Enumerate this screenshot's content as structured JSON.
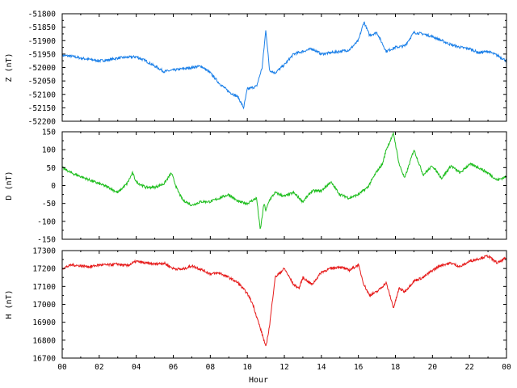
{
  "chart_data": {
    "type": "line",
    "title": "",
    "xlabel": "Hour",
    "x_tick_labels": [
      "00",
      "02",
      "04",
      "06",
      "08",
      "10",
      "12",
      "14",
      "16",
      "18",
      "20",
      "22",
      "00"
    ],
    "xlim": [
      0,
      24
    ],
    "panels": [
      {
        "ylabel": "Z (nT)",
        "color": "#1a7fe8",
        "ylim": [
          -52200,
          -51800
        ],
        "yticks": [
          -52200,
          -52150,
          -52100,
          -52050,
          -52000,
          -51950,
          -51900,
          -51850,
          -51800
        ],
        "series": [
          {
            "x": [
              0,
              0.5,
              1,
              1.5,
              2,
              2.5,
              3,
              3.5,
              4,
              4.5,
              5,
              5.5,
              6,
              6.5,
              7,
              7.5,
              8,
              8.5,
              9,
              9.5,
              9.8,
              10,
              10.5,
              10.8,
              11,
              11.2,
              11.5,
              12,
              12.5,
              13,
              13.5,
              14,
              14.5,
              15,
              15.5,
              16,
              16.3,
              16.6,
              17,
              17.5,
              18,
              18.5,
              19,
              19.5,
              20,
              20.5,
              21,
              21.5,
              22,
              22.5,
              23,
              23.5,
              24
            ],
            "values": [
              -51955,
              -51958,
              -51965,
              -51970,
              -51975,
              -51972,
              -51965,
              -51962,
              -51960,
              -51975,
              -51995,
              -52015,
              -52010,
              -52005,
              -52000,
              -51995,
              -52020,
              -52060,
              -52090,
              -52110,
              -52150,
              -52080,
              -52070,
              -52000,
              -51860,
              -52010,
              -52020,
              -51990,
              -51950,
              -51940,
              -51930,
              -51950,
              -51945,
              -51940,
              -51935,
              -51900,
              -51830,
              -51880,
              -51870,
              -51940,
              -51925,
              -51920,
              -51870,
              -51875,
              -51885,
              -51900,
              -51915,
              -51925,
              -51930,
              -51945,
              -51940,
              -51955,
              -51975
            ]
          }
        ]
      },
      {
        "ylabel": "D (nT)",
        "color": "#1fbe1f",
        "ylim": [
          -150,
          150
        ],
        "yticks": [
          -150,
          -100,
          -50,
          0,
          50,
          100,
          150
        ],
        "series": [
          {
            "x": [
              0,
              0.5,
              1,
              1.5,
              2,
              2.5,
              3,
              3.5,
              3.8,
              4,
              4.5,
              5,
              5.5,
              5.9,
              6.2,
              6.5,
              7,
              7.5,
              8,
              8.5,
              9,
              9.5,
              10,
              10.5,
              10.7,
              10.9,
              11,
              11.2,
              11.5,
              12,
              12.5,
              13,
              13.5,
              14,
              14.5,
              15,
              15.5,
              16,
              16.5,
              17,
              17.3,
              17.5,
              17.9,
              18.2,
              18.5,
              19,
              19.5,
              20,
              20.5,
              21,
              21.5,
              22,
              22.5,
              23,
              23.5,
              24
            ],
            "values": [
              50,
              35,
              25,
              15,
              5,
              -5,
              -20,
              5,
              35,
              10,
              -5,
              -5,
              5,
              35,
              -10,
              -40,
              -55,
              -45,
              -45,
              -35,
              -25,
              -45,
              -50,
              -35,
              -125,
              -50,
              -70,
              -40,
              -20,
              -30,
              -20,
              -45,
              -15,
              -15,
              10,
              -25,
              -35,
              -25,
              -5,
              40,
              60,
              100,
              145,
              60,
              20,
              100,
              30,
              55,
              20,
              55,
              35,
              60,
              50,
              35,
              15,
              25
            ]
          }
        ]
      },
      {
        "ylabel": "H (nT)",
        "color": "#e61b1b",
        "ylim": [
          16700,
          17300
        ],
        "yticks": [
          16700,
          16800,
          16900,
          17000,
          17100,
          17200,
          17300
        ],
        "series": [
          {
            "x": [
              0,
              0.5,
              1,
              1.5,
              2,
              2.5,
              3,
              3.5,
              4,
              4.5,
              5,
              5.5,
              6,
              6.5,
              7,
              7.5,
              8,
              8.5,
              9,
              9.5,
              10,
              10.3,
              10.6,
              10.9,
              11,
              11.2,
              11.5,
              12,
              12.5,
              12.8,
              13,
              13.5,
              14,
              14.5,
              15,
              15.5,
              16,
              16.3,
              16.6,
              17,
              17.5,
              17.9,
              18.2,
              18.5,
              19,
              19.5,
              20,
              20.5,
              21,
              21.5,
              22,
              22.5,
              23,
              23.5,
              24
            ],
            "values": [
              17200,
              17220,
              17215,
              17210,
              17220,
              17220,
              17225,
              17215,
              17240,
              17230,
              17225,
              17230,
              17200,
              17195,
              17215,
              17195,
              17170,
              17175,
              17150,
              17120,
              17060,
              17000,
              16900,
              16800,
              16760,
              16880,
              17150,
              17200,
              17110,
              17090,
              17150,
              17110,
              17180,
              17200,
              17210,
              17190,
              17220,
              17110,
              17050,
              17070,
              17120,
              16980,
              17090,
              17070,
              17130,
              17150,
              17190,
              17220,
              17230,
              17210,
              17240,
              17255,
              17270,
              17230,
              17260
            ]
          }
        ]
      }
    ]
  }
}
